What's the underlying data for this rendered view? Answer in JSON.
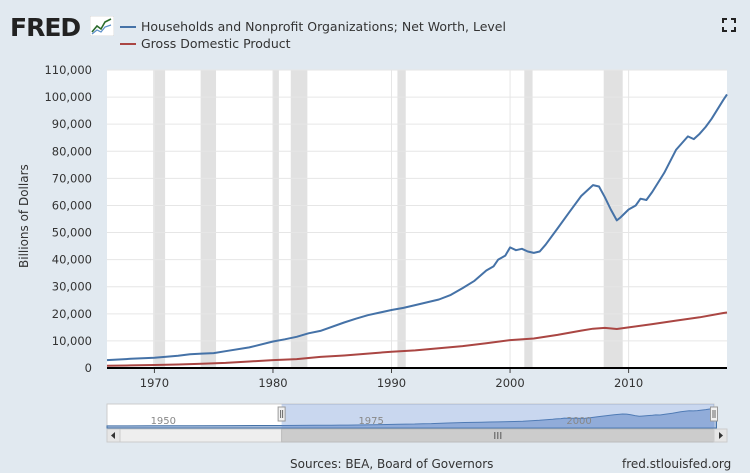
{
  "header": {
    "logo_text": "FRED",
    "fullscreen_icon": "fullscreen-icon"
  },
  "legend": [
    {
      "name": "Households and Nonprofit Organizations; Net Worth, Level",
      "color": "#4572a7"
    },
    {
      "name": "Gross Domestic Product",
      "color": "#aa4643"
    }
  ],
  "footer": {
    "sources": "Sources: BEA, Board of Governors",
    "site": "fred.stlouisfed.org"
  },
  "navigator": {
    "tick_labels": [
      "1950",
      "1975",
      "2000"
    ],
    "range": [
      1966,
      2018
    ],
    "full_range": [
      1945,
      2018
    ]
  },
  "chart_data": {
    "type": "line",
    "xlabel": "",
    "ylabel": "Billions of Dollars",
    "xlim": [
      1966,
      2018.3
    ],
    "ylim": [
      0,
      110000
    ],
    "x_ticks": [
      1970,
      1980,
      1990,
      2000,
      2010
    ],
    "y_ticks": [
      0,
      10000,
      20000,
      30000,
      40000,
      50000,
      60000,
      70000,
      80000,
      90000,
      100000,
      110000
    ],
    "y_tick_labels": [
      "0",
      "10,000",
      "20,000",
      "30,000",
      "40,000",
      "50,000",
      "60,000",
      "70,000",
      "80,000",
      "90,000",
      "100,000",
      "110,000"
    ],
    "recessions": [
      [
        1969.9,
        1970.9
      ],
      [
        1973.9,
        1975.2
      ],
      [
        1980.0,
        1980.5
      ],
      [
        1981.5,
        1982.9
      ],
      [
        1990.5,
        1991.2
      ],
      [
        2001.2,
        2001.9
      ],
      [
        2007.9,
        2009.5
      ]
    ],
    "grid": true,
    "series": [
      {
        "name": "Households and Nonprofit Organizations; Net Worth, Level",
        "x": [
          1966,
          1968,
          1970,
          1972,
          1973,
          1974,
          1975,
          1976,
          1978,
          1980,
          1981,
          1982,
          1983,
          1984,
          1986,
          1987,
          1988,
          1990,
          1991,
          1992,
          1994,
          1995,
          1996,
          1997,
          1998,
          1998.6,
          1999,
          1999.6,
          2000,
          2000.5,
          2001,
          2001.5,
          2002,
          2002.5,
          2003,
          2004,
          2005,
          2006,
          2007,
          2007.5,
          2008,
          2008.5,
          2009,
          2009.3,
          2010,
          2010.6,
          2011,
          2011.5,
          2012,
          2013,
          2014,
          2015,
          2015.5,
          2016,
          2016.5,
          2017,
          2017.5,
          2018,
          2018.3
        ],
        "y": [
          2900,
          3400,
          3800,
          4500,
          5100,
          5300,
          5500,
          6200,
          7600,
          9800,
          10600,
          11500,
          12800,
          13700,
          16800,
          18200,
          19500,
          21400,
          22200,
          23200,
          25300,
          27000,
          29500,
          32200,
          36000,
          37500,
          40000,
          41500,
          44500,
          43500,
          44000,
          43000,
          42500,
          43000,
          45500,
          51500,
          57500,
          63500,
          67500,
          67000,
          63000,
          58500,
          54500,
          55500,
          58500,
          60000,
          62500,
          62000,
          65000,
          72000,
          80500,
          85500,
          84500,
          86500,
          89000,
          92000,
          95500,
          99000,
          101000
        ]
      },
      {
        "name": "Gross Domestic Product",
        "x": [
          1966,
          1968,
          1970,
          1972,
          1974,
          1976,
          1978,
          1980,
          1982,
          1984,
          1986,
          1988,
          1990,
          1992,
          1994,
          1996,
          1998,
          2000,
          2002,
          2004,
          2006,
          2007,
          2008,
          2009,
          2010,
          2012,
          2014,
          2016,
          2018,
          2018.3
        ],
        "y": [
          800,
          950,
          1100,
          1300,
          1600,
          1900,
          2400,
          2900,
          3300,
          4100,
          4600,
          5300,
          6000,
          6500,
          7300,
          8100,
          9100,
          10300,
          10900,
          12200,
          13800,
          14500,
          14800,
          14400,
          15000,
          16200,
          17500,
          18700,
          20300,
          20500
        ]
      }
    ]
  }
}
